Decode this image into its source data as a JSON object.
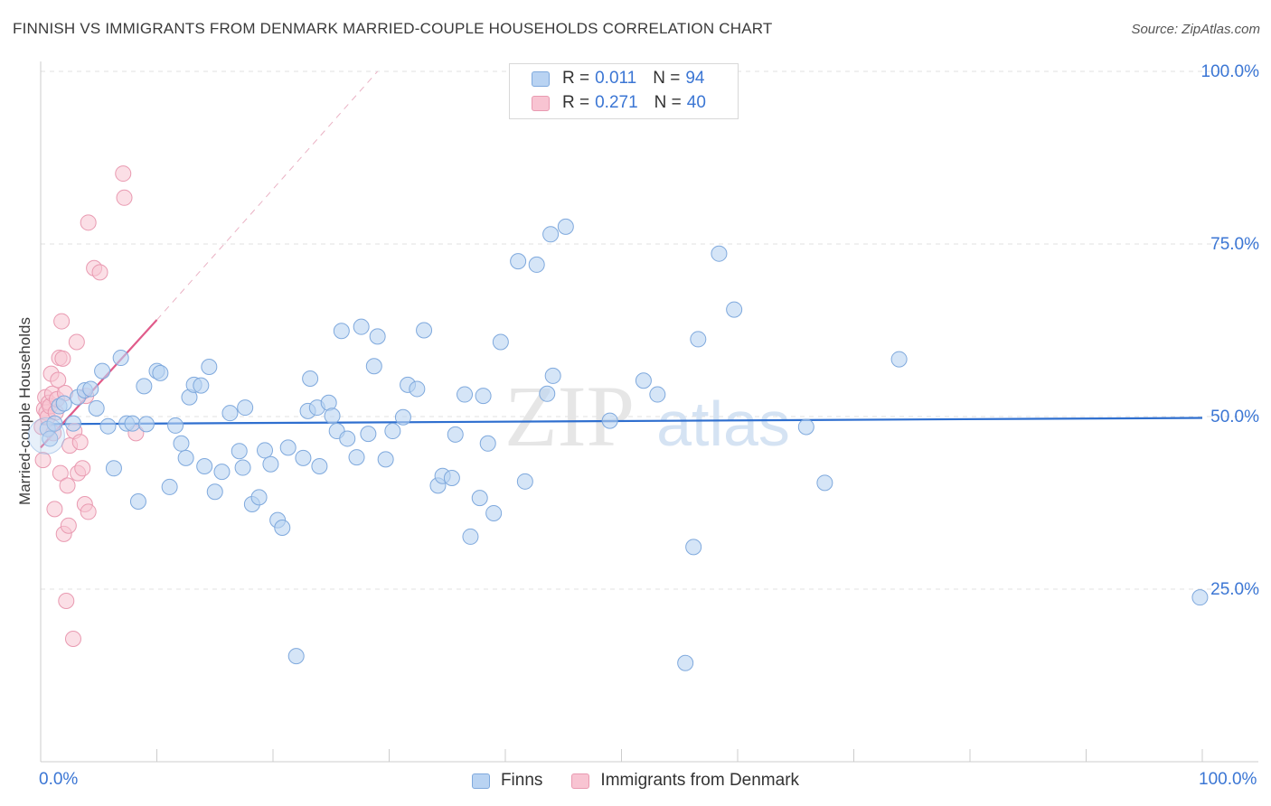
{
  "header": {
    "title": "FINNISH VS IMMIGRANTS FROM DENMARK MARRIED-COUPLE HOUSEHOLDS CORRELATION CHART",
    "source": "Source: ZipAtlas.com"
  },
  "watermark": {
    "left": "ZIP",
    "right": "atlas"
  },
  "legend_top": {
    "rows": [
      {
        "r_label": "R =",
        "r_value": "0.011",
        "n_label": "N =",
        "n_value": "94"
      },
      {
        "r_label": "R =",
        "r_value": "0.271",
        "n_label": "N =",
        "n_value": "40"
      }
    ]
  },
  "legend_bottom": {
    "series_a": "Finns",
    "series_b": "Immigrants from Denmark"
  },
  "colors": {
    "finns_fill": "#b9d3f2",
    "finns_stroke": "#7fa9dd",
    "finns_line": "#2f6fcf",
    "denmark_fill": "#f8c4d2",
    "denmark_stroke": "#e99ab1",
    "denmark_line": "#e05b8a",
    "axis_text": "#3b76d4"
  },
  "chart_data": {
    "type": "scatter",
    "title": "FINNISH VS IMMIGRANTS FROM DENMARK MARRIED-COUPLE HOUSEHOLDS CORRELATION CHART",
    "xlabel": "",
    "ylabel": "Married-couple Households",
    "xlim": [
      0,
      100
    ],
    "ylim": [
      0,
      100
    ],
    "x_tick_labels": [
      "0.0%",
      "100.0%"
    ],
    "y_ticks": [
      25,
      50,
      75,
      100
    ],
    "y_tick_labels": [
      "25.0%",
      "50.0%",
      "75.0%",
      "100.0%"
    ],
    "grid": true,
    "series": [
      {
        "name": "Finns",
        "r": 0.011,
        "n": 94,
        "trend": {
          "x": [
            0,
            100
          ],
          "y": [
            48.9,
            49.8
          ]
        },
        "points": [
          [
            0.6,
            48.2
          ],
          [
            0.8,
            46.8
          ],
          [
            1.2,
            49.0
          ],
          [
            1.6,
            51.5
          ],
          [
            2.0,
            51.9
          ],
          [
            2.8,
            49.0
          ],
          [
            3.2,
            52.8
          ],
          [
            3.8,
            53.8
          ],
          [
            4.3,
            54.0
          ],
          [
            4.8,
            51.2
          ],
          [
            5.3,
            56.6
          ],
          [
            5.8,
            48.6
          ],
          [
            6.3,
            42.5
          ],
          [
            6.9,
            58.5
          ],
          [
            7.4,
            49.0
          ],
          [
            7.9,
            49.0
          ],
          [
            8.4,
            37.7
          ],
          [
            8.9,
            54.4
          ],
          [
            9.1,
            48.9
          ],
          [
            10.0,
            56.6
          ],
          [
            10.3,
            56.3
          ],
          [
            11.1,
            39.8
          ],
          [
            11.6,
            48.7
          ],
          [
            12.1,
            46.1
          ],
          [
            12.5,
            44.0
          ],
          [
            12.8,
            52.8
          ],
          [
            13.2,
            54.6
          ],
          [
            13.8,
            54.5
          ],
          [
            14.1,
            42.8
          ],
          [
            14.5,
            57.2
          ],
          [
            15.0,
            39.1
          ],
          [
            15.6,
            42.0
          ],
          [
            16.3,
            50.5
          ],
          [
            17.1,
            45.0
          ],
          [
            17.4,
            42.6
          ],
          [
            17.6,
            51.3
          ],
          [
            18.2,
            37.3
          ],
          [
            18.8,
            38.3
          ],
          [
            19.3,
            45.1
          ],
          [
            19.8,
            43.1
          ],
          [
            20.4,
            35.0
          ],
          [
            20.8,
            33.9
          ],
          [
            21.3,
            45.5
          ],
          [
            22.0,
            15.3
          ],
          [
            22.6,
            44.0
          ],
          [
            23.0,
            50.8
          ],
          [
            23.2,
            55.5
          ],
          [
            23.8,
            51.3
          ],
          [
            24.0,
            42.8
          ],
          [
            24.8,
            52.0
          ],
          [
            25.1,
            50.1
          ],
          [
            25.5,
            47.9
          ],
          [
            25.9,
            62.4
          ],
          [
            26.4,
            46.8
          ],
          [
            27.2,
            44.1
          ],
          [
            27.6,
            63.0
          ],
          [
            28.2,
            47.5
          ],
          [
            28.7,
            57.3
          ],
          [
            29.0,
            61.6
          ],
          [
            29.7,
            43.8
          ],
          [
            30.3,
            47.9
          ],
          [
            31.2,
            49.9
          ],
          [
            31.6,
            54.6
          ],
          [
            32.4,
            54.0
          ],
          [
            33.0,
            62.5
          ],
          [
            34.2,
            40.0
          ],
          [
            34.6,
            41.4
          ],
          [
            35.4,
            41.1
          ],
          [
            35.7,
            47.4
          ],
          [
            36.5,
            53.2
          ],
          [
            37.0,
            32.6
          ],
          [
            37.8,
            38.2
          ],
          [
            38.1,
            53.0
          ],
          [
            38.5,
            46.1
          ],
          [
            39.0,
            36.0
          ],
          [
            39.6,
            60.8
          ],
          [
            41.1,
            72.5
          ],
          [
            41.7,
            40.6
          ],
          [
            42.7,
            72.0
          ],
          [
            43.6,
            53.3
          ],
          [
            43.9,
            76.4
          ],
          [
            44.1,
            55.9
          ],
          [
            45.2,
            77.5
          ],
          [
            49.0,
            49.4
          ],
          [
            51.9,
            55.2
          ],
          [
            53.1,
            53.2
          ],
          [
            55.5,
            14.3
          ],
          [
            56.2,
            31.1
          ],
          [
            56.6,
            61.2
          ],
          [
            58.4,
            73.6
          ],
          [
            59.7,
            65.5
          ],
          [
            65.9,
            48.5
          ],
          [
            67.5,
            40.4
          ],
          [
            73.9,
            58.3
          ],
          [
            99.8,
            23.8
          ]
        ]
      },
      {
        "name": "Immigrants from Denmark",
        "r": 0.271,
        "n": 40,
        "trend": {
          "x": [
            0,
            10
          ],
          "y": [
            45.5,
            64.0
          ]
        },
        "trend_dashed": {
          "x": [
            10,
            29
          ],
          "y": [
            64.0,
            100
          ]
        },
        "points": [
          [
            0.1,
            48.5
          ],
          [
            0.2,
            43.7
          ],
          [
            0.3,
            51.1
          ],
          [
            0.4,
            52.8
          ],
          [
            0.5,
            50.6
          ],
          [
            0.6,
            49.9
          ],
          [
            0.7,
            52.0
          ],
          [
            0.8,
            51.5
          ],
          [
            0.9,
            56.2
          ],
          [
            1.0,
            53.3
          ],
          [
            1.1,
            47.6
          ],
          [
            1.2,
            36.6
          ],
          [
            1.3,
            50.6
          ],
          [
            1.4,
            52.5
          ],
          [
            1.5,
            55.3
          ],
          [
            1.6,
            58.5
          ],
          [
            1.7,
            41.8
          ],
          [
            1.8,
            63.8
          ],
          [
            1.9,
            58.4
          ],
          [
            2.0,
            33.0
          ],
          [
            2.1,
            53.4
          ],
          [
            2.2,
            23.3
          ],
          [
            2.3,
            40.0
          ],
          [
            2.4,
            34.2
          ],
          [
            2.5,
            45.8
          ],
          [
            2.8,
            17.8
          ],
          [
            2.9,
            47.9
          ],
          [
            3.1,
            60.8
          ],
          [
            3.2,
            41.8
          ],
          [
            3.4,
            46.3
          ],
          [
            3.6,
            42.5
          ],
          [
            3.8,
            37.3
          ],
          [
            3.9,
            53.0
          ],
          [
            4.1,
            36.2
          ],
          [
            4.1,
            78.1
          ],
          [
            4.6,
            71.5
          ],
          [
            5.1,
            70.9
          ],
          [
            7.1,
            85.2
          ],
          [
            7.2,
            81.7
          ],
          [
            8.2,
            47.6
          ]
        ]
      }
    ]
  }
}
